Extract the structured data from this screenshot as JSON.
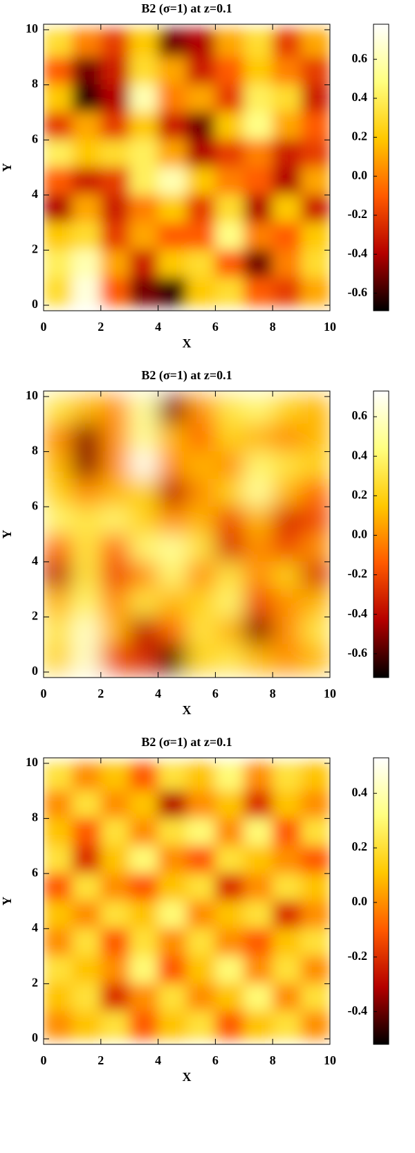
{
  "chart_data": [
    {
      "type": "heatmap",
      "title": "B2 (σ=1) at z=0.1",
      "xlabel": "X",
      "ylabel": "Y",
      "x": [
        0.5,
        1.5,
        2.5,
        3.5,
        4.5,
        5.5,
        6.5,
        7.5,
        8.5,
        9.5
      ],
      "y": [
        9.5,
        8.5,
        7.5,
        6.5,
        5.5,
        4.5,
        3.5,
        2.5,
        1.5,
        0.5
      ],
      "z": [
        [
          0.3,
          0.0,
          -0.2,
          0.2,
          -0.5,
          -0.4,
          0.1,
          0.3,
          -0.2,
          0.1
        ],
        [
          -0.1,
          -0.5,
          -0.3,
          0.3,
          0.1,
          -0.3,
          -0.1,
          0.2,
          0.0,
          -0.2
        ],
        [
          0.2,
          -0.6,
          -0.4,
          0.6,
          0.0,
          0.1,
          -0.2,
          0.4,
          0.3,
          -0.3
        ],
        [
          -0.2,
          0.1,
          -0.2,
          0.2,
          -0.3,
          -0.5,
          0.2,
          0.5,
          0.1,
          -0.1
        ],
        [
          0.4,
          0.2,
          0.3,
          0.4,
          0.1,
          -0.4,
          -0.2,
          0.0,
          -0.3,
          -0.2
        ],
        [
          -0.1,
          -0.3,
          -0.2,
          0.4,
          0.6,
          0.2,
          0.0,
          -0.1,
          -0.4,
          0.1
        ],
        [
          -0.4,
          0.1,
          -0.3,
          0.0,
          0.2,
          -0.2,
          0.3,
          -0.4,
          0.2,
          -0.3
        ],
        [
          0.2,
          0.3,
          -0.2,
          0.1,
          -0.1,
          -0.1,
          0.5,
          0.0,
          -0.1,
          0.2
        ],
        [
          0.4,
          0.6,
          0.1,
          -0.3,
          0.2,
          0.3,
          -0.1,
          -0.5,
          0.0,
          0.3
        ],
        [
          0.3,
          0.7,
          -0.1,
          -0.5,
          -0.6,
          0.2,
          0.3,
          -0.1,
          -0.2,
          0.1
        ]
      ],
      "xlim": [
        0,
        10
      ],
      "ylim": [
        -0.2,
        10.2
      ],
      "xticks": [
        0,
        2,
        4,
        6,
        8,
        10
      ],
      "yticks": [
        0,
        2,
        4,
        6,
        8,
        10
      ],
      "zlim": [
        -0.69,
        0.78
      ],
      "zticks": [
        -0.6,
        -0.4,
        -0.2,
        {
          "value": 0,
          "label": "0.0"
        },
        0.2,
        0.4,
        0.6
      ],
      "colormap": [
        "#000000",
        "#b40000",
        "#ff5a00",
        "#ffc800",
        "#ffff80",
        "#ffffff"
      ]
    },
    {
      "type": "heatmap",
      "title": "B2 (σ=1) at z=0.1",
      "xlabel": "X",
      "ylabel": "Y",
      "x": [
        0.5,
        1.5,
        2.5,
        3.5,
        4.5,
        5.5,
        6.5,
        7.5,
        8.5,
        9.5
      ],
      "y": [
        9.5,
        8.5,
        7.5,
        6.5,
        5.5,
        4.5,
        3.5,
        2.5,
        1.5,
        0.5
      ],
      "z": [
        [
          0.3,
          0.1,
          0.0,
          0.5,
          -0.5,
          0.0,
          0.3,
          0.4,
          0.2,
          0.1
        ],
        [
          0.0,
          -0.5,
          0.0,
          0.5,
          0.1,
          -0.1,
          0.2,
          0.1,
          0.0,
          0.1
        ],
        [
          0.1,
          -0.5,
          0.0,
          0.7,
          0.0,
          0.1,
          0.0,
          0.4,
          0.3,
          0.2
        ],
        [
          0.2,
          0.0,
          0.1,
          0.2,
          -0.4,
          0.0,
          0.2,
          0.5,
          0.1,
          -0.1
        ],
        [
          0.4,
          0.3,
          0.4,
          0.2,
          0.0,
          0.1,
          -0.2,
          0.1,
          -0.3,
          -0.2
        ],
        [
          -0.1,
          0.3,
          -0.1,
          0.4,
          0.5,
          0.3,
          -0.3,
          0.0,
          -0.2,
          0.0
        ],
        [
          -0.4,
          0.3,
          -0.2,
          0.0,
          0.4,
          0.0,
          0.3,
          0.0,
          0.2,
          -0.3
        ],
        [
          0.1,
          0.4,
          0.0,
          0.3,
          0.1,
          0.2,
          0.4,
          -0.2,
          0.0,
          0.1
        ],
        [
          0.3,
          0.6,
          0.1,
          -0.4,
          -0.1,
          0.3,
          0.1,
          -0.5,
          0.0,
          0.3
        ],
        [
          0.2,
          0.6,
          -0.2,
          -0.3,
          -0.6,
          0.2,
          0.3,
          0.1,
          0.0,
          0.1
        ]
      ],
      "xlim": [
        0,
        10
      ],
      "ylim": [
        -0.2,
        10.2
      ],
      "xticks": [
        0,
        2,
        4,
        6,
        8,
        10
      ],
      "yticks": [
        0,
        2,
        4,
        6,
        8,
        10
      ],
      "zlim": [
        -0.72,
        0.73
      ],
      "zticks": [
        -0.6,
        -0.4,
        -0.2,
        {
          "value": 0,
          "label": "0.0"
        },
        0.2,
        0.4,
        0.6
      ],
      "colormap": [
        "#000000",
        "#b40000",
        "#ff5a00",
        "#ffc800",
        "#ffff80",
        "#ffffff"
      ]
    },
    {
      "type": "heatmap",
      "title": "B2 (σ=1) at z=0.1",
      "xlabel": "X",
      "ylabel": "Y",
      "x": [
        0.5,
        1.5,
        2.5,
        3.5,
        4.5,
        5.5,
        6.5,
        7.5,
        8.5,
        9.5
      ],
      "y": [
        9.5,
        8.5,
        7.5,
        6.5,
        5.5,
        4.5,
        3.5,
        2.5,
        1.5,
        0.5
      ],
      "z": [
        [
          0.2,
          0.0,
          0.1,
          -0.1,
          0.2,
          0.1,
          0.3,
          0.0,
          0.2,
          0.1
        ],
        [
          0.0,
          0.2,
          0.0,
          0.1,
          -0.3,
          0.0,
          0.1,
          -0.2,
          0.1,
          0.0
        ],
        [
          0.1,
          -0.1,
          0.2,
          0.0,
          0.2,
          0.3,
          0.0,
          0.3,
          -0.1,
          0.2
        ],
        [
          0.2,
          -0.2,
          0.1,
          0.3,
          0.0,
          -0.1,
          0.2,
          0.1,
          0.0,
          -0.1
        ],
        [
          -0.1,
          0.2,
          0.0,
          -0.1,
          0.1,
          0.2,
          -0.2,
          0.0,
          0.2,
          0.1
        ],
        [
          0.1,
          0.0,
          0.2,
          0.1,
          0.3,
          0.0,
          0.1,
          0.2,
          -0.2,
          0.0
        ],
        [
          0.0,
          0.2,
          -0.1,
          0.2,
          0.0,
          0.2,
          0.0,
          -0.1,
          0.1,
          0.2
        ],
        [
          0.2,
          0.1,
          0.0,
          0.3,
          -0.1,
          0.1,
          0.3,
          0.0,
          0.2,
          0.0
        ],
        [
          0.1,
          0.2,
          -0.2,
          0.0,
          0.2,
          0.0,
          0.1,
          0.3,
          0.0,
          0.2
        ],
        [
          0.0,
          0.1,
          0.2,
          -0.1,
          0.1,
          0.2,
          -0.1,
          0.1,
          0.2,
          0.0
        ]
      ],
      "xlim": [
        0,
        10
      ],
      "ylim": [
        -0.2,
        10.2
      ],
      "xticks": [
        0,
        2,
        4,
        6,
        8,
        10
      ],
      "yticks": [
        0,
        2,
        4,
        6,
        8,
        10
      ],
      "zlim": [
        -0.52,
        0.53
      ],
      "zticks": [
        -0.4,
        -0.2,
        {
          "value": 0,
          "label": "0.0"
        },
        0.2,
        0.4
      ],
      "colormap": [
        "#000000",
        "#b40000",
        "#ff5a00",
        "#ffc800",
        "#ffff80",
        "#ffffff"
      ]
    }
  ]
}
